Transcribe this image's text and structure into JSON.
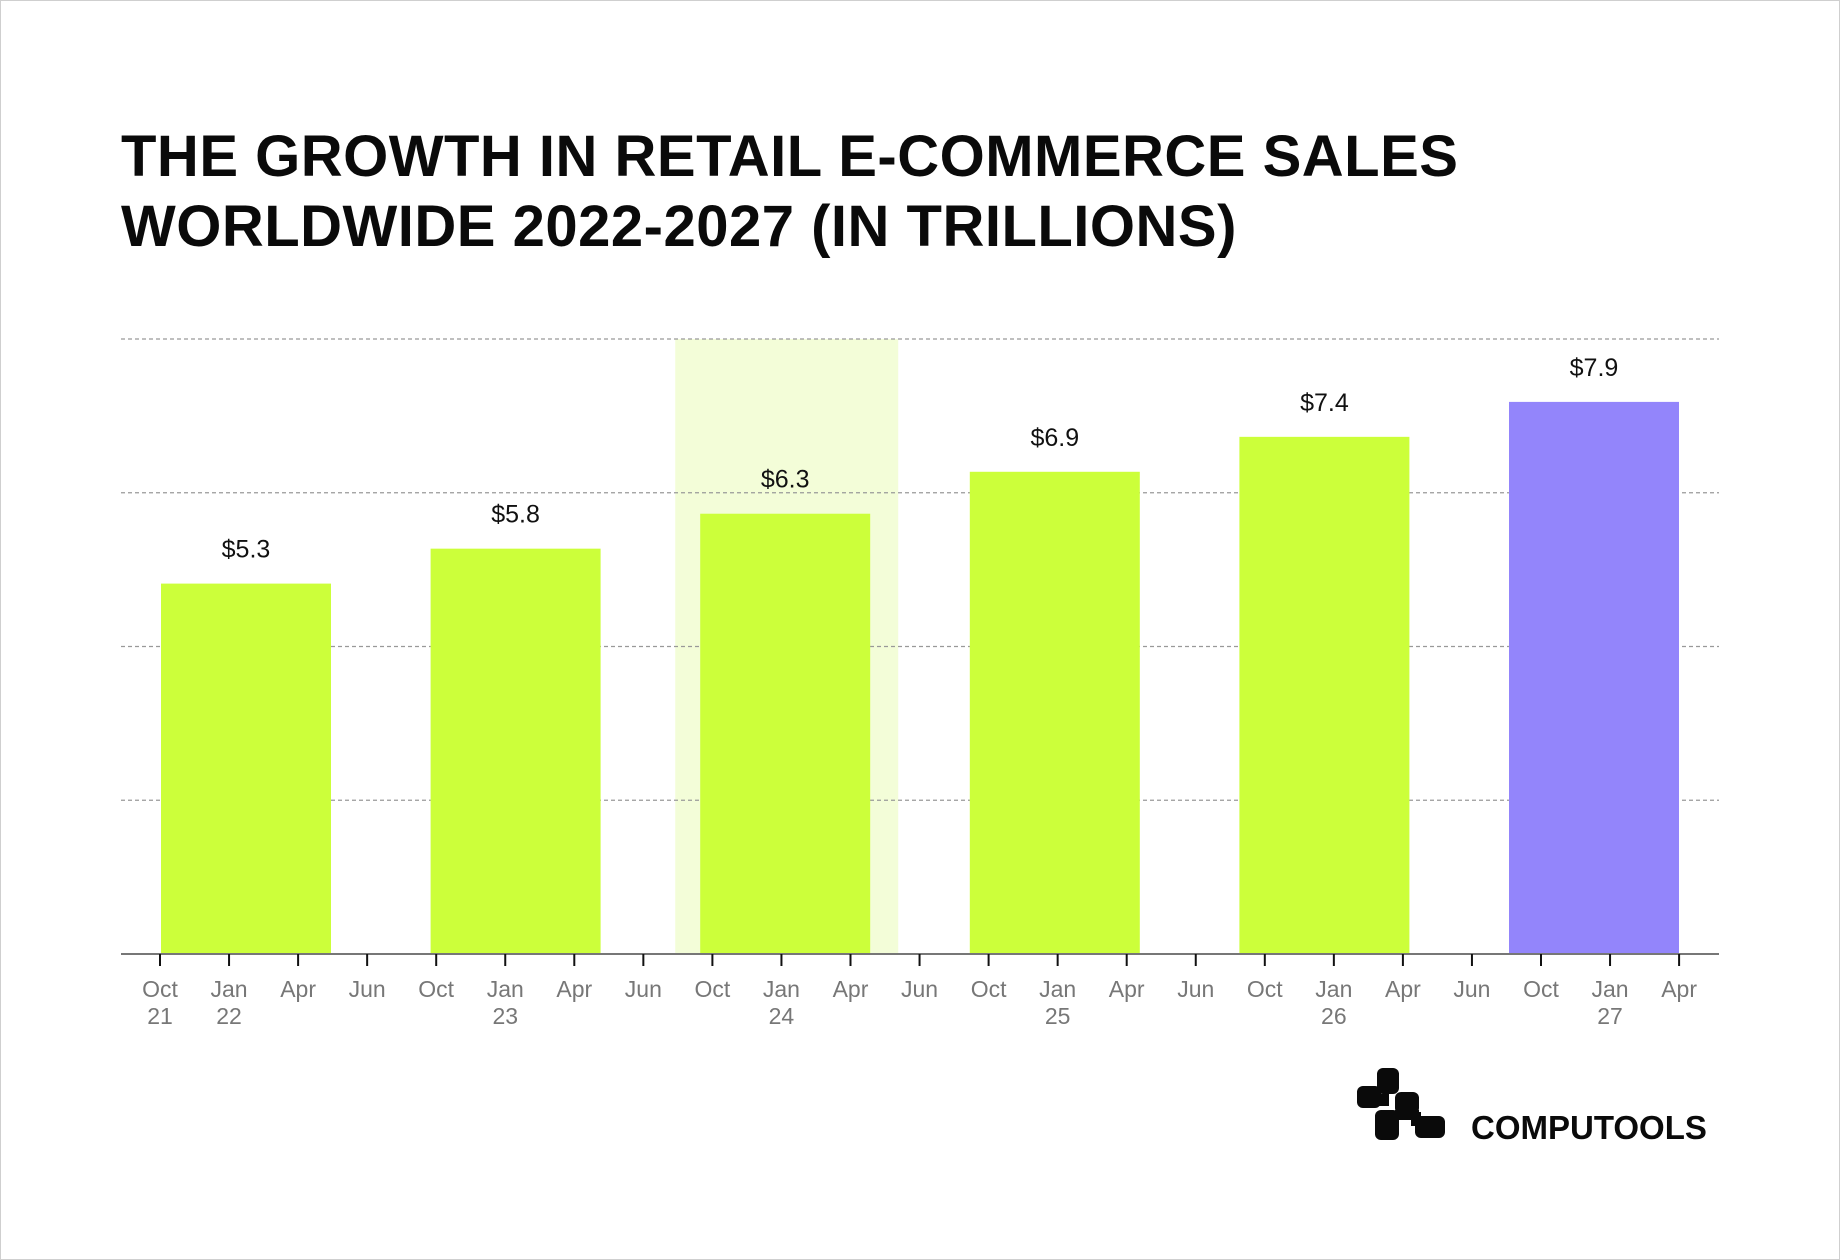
{
  "chart_data": {
    "type": "bar",
    "title": "THE GROWTH IN RETAIL E-COMMERCE SALES WORLDWIDE 2022-2027 (IN TRILLIONS)",
    "title_lines": [
      "THE GROWTH IN RETAIL E-COMMERCE SALES",
      "WORLDWIDE 2022-2027 (IN TRILLIONS)"
    ],
    "categories": [
      "2022",
      "2023",
      "2024",
      "2025",
      "2026",
      "2027"
    ],
    "values": [
      5.3,
      5.8,
      6.3,
      6.9,
      7.4,
      7.9
    ],
    "data_labels": [
      "$5.3",
      "$5.8",
      "$6.3",
      "$6.9",
      "$7.4",
      "$7.9"
    ],
    "bar_colors": [
      "#ccff3a",
      "#ccff3a",
      "#ccff3a",
      "#ccff3a",
      "#ccff3a",
      "#9385fb"
    ],
    "highlight_band_color": "#f3fdd8",
    "highlighted_category": "2024",
    "ylim": [
      0,
      8.8
    ],
    "grid": true,
    "x_ticks": [
      {
        "m": "Oct",
        "y": "21"
      },
      {
        "m": "Jan",
        "y": "22"
      },
      {
        "m": "Apr",
        "y": ""
      },
      {
        "m": "Jun",
        "y": ""
      },
      {
        "m": "Oct",
        "y": ""
      },
      {
        "m": "Jan",
        "y": "23"
      },
      {
        "m": "Apr",
        "y": ""
      },
      {
        "m": "Jun",
        "y": ""
      },
      {
        "m": "Oct",
        "y": ""
      },
      {
        "m": "Jan",
        "y": "24"
      },
      {
        "m": "Apr",
        "y": ""
      },
      {
        "m": "Jun",
        "y": ""
      },
      {
        "m": "Oct",
        "y": ""
      },
      {
        "m": "Jan",
        "y": "25"
      },
      {
        "m": "Apr",
        "y": ""
      },
      {
        "m": "Jun",
        "y": ""
      },
      {
        "m": "Oct",
        "y": ""
      },
      {
        "m": "Jan",
        "y": "26"
      },
      {
        "m": "Apr",
        "y": ""
      },
      {
        "m": "Jun",
        "y": ""
      },
      {
        "m": "Oct",
        "y": ""
      },
      {
        "m": "Jan",
        "y": "27"
      },
      {
        "m": "Apr",
        "y": ""
      }
    ]
  },
  "brand": {
    "name": "COMPUTOOLS"
  }
}
